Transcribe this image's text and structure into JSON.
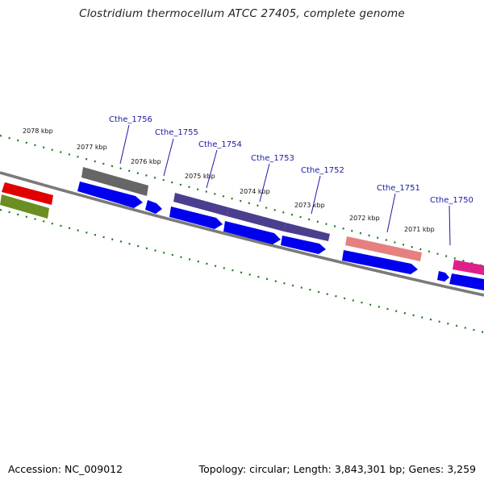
{
  "header": {
    "title": "Clostridium thermocellum ATCC 27405, complete genome"
  },
  "footer": {
    "accession": "Accession: NC_009012",
    "summary": "Topology: circular; Length: 3,843,301 bp; Genes: 3,259"
  },
  "ruler": {
    "labels": [
      "2078 kbp",
      "2077 kbp",
      "2076 kbp",
      "2075 kbp",
      "2074 kbp",
      "2073 kbp",
      "2072 kbp",
      "2071 kbp"
    ]
  },
  "genes": {
    "labels": [
      "Cthe_1756",
      "Cthe_1755",
      "Cthe_1754",
      "Cthe_1753",
      "Cthe_1752",
      "Cthe_1751",
      "Cthe_1750"
    ]
  },
  "colors": {
    "backbone": "#7a7a7a",
    "cds": "#0000ee",
    "tick": "#1a7a1a",
    "gene_label": "#1a1aa6",
    "red_feature": "#e00000",
    "olive_feature": "#6b8e23",
    "gray_feature": "#666666",
    "purple_feature": "#4a3f8f",
    "salmon_feature": "#e68080",
    "magenta_feature": "#e0208a"
  }
}
